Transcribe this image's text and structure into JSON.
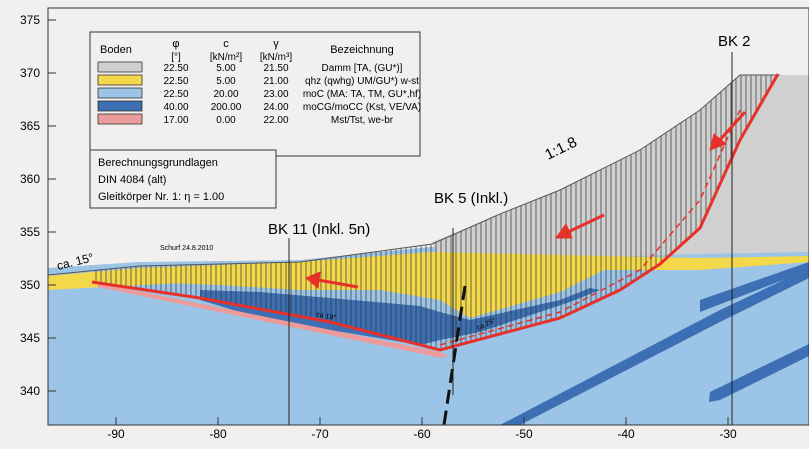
{
  "axes": {
    "y_ticks": [
      "375",
      "370",
      "365",
      "360",
      "355",
      "350",
      "345",
      "340"
    ],
    "x_ticks": [
      "-90",
      "-80",
      "-70",
      "-60",
      "-50",
      "-40",
      "-30"
    ]
  },
  "legend": {
    "headers": {
      "boden": "Boden",
      "phi_symbol": "φ",
      "phi_unit": "[°]",
      "c_symbol": "c",
      "c_unit": "[kN/m²]",
      "gamma_symbol": "γ",
      "gamma_unit": "[kN/m³]",
      "bezeichnung": "Bezeichnung"
    },
    "rows": [
      {
        "phi": "22.50",
        "c": "5.00",
        "gamma": "21.50",
        "name": "Damm [TA, (GU*)]",
        "color": "#d0d0d0"
      },
      {
        "phi": "22.50",
        "c": "5.00",
        "gamma": "21.00",
        "name": "qhz (qwhg) UM/GU*) w-st",
        "color": "#f3d84a"
      },
      {
        "phi": "22.50",
        "c": "20.00",
        "gamma": "23.00",
        "name": "moC (MA: TA, TM, GU*,hf)",
        "color": "#9cc4e6"
      },
      {
        "phi": "40.00",
        "c": "200.00",
        "gamma": "24.00",
        "name": "moCG/moCC (Kst, VE/VA)",
        "color": "#3c6fb3"
      },
      {
        "phi": "17.00",
        "c": "0.00",
        "gamma": "22.00",
        "name": "Mst/Tst, we-br",
        "color": "#ec9a9a"
      }
    ]
  },
  "calc_box": {
    "line1": "Berechnungsgrundlagen",
    "line2": "DIN 4084 (alt)",
    "line3": "Gleitkörper Nr. 1: η = 1.00"
  },
  "labels": {
    "bk2": "BK 2",
    "bk5": "BK 5 (Inkl.)",
    "bk11": "BK 11 (Inkl. 5n)",
    "slope": "1:1.8",
    "ca15": "ca. 15°",
    "schurf": "Schurf 24.8.2010",
    "deg19": "ca 19°",
    "deg25": "ca 25°"
  },
  "colors": {
    "red": "#e8302a",
    "damm": "#d0d0d0",
    "qhz": "#f3d84a",
    "moc": "#9cc4e6",
    "mocg": "#3c6fb3",
    "mst": "#ec9a9a"
  }
}
